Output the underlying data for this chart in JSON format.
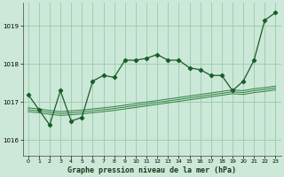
{
  "title": "Graphe pression niveau de la mer (hPa)",
  "bg_color": "#cce8d8",
  "grid_color": "#99ccaa",
  "line_color_main": "#1a5c2a",
  "line_color_thin": "#2e7d3e",
  "xlim": [
    -0.5,
    23.5
  ],
  "ylim": [
    1015.6,
    1019.6
  ],
  "yticks": [
    1016,
    1017,
    1018,
    1019
  ],
  "xticks": [
    0,
    1,
    2,
    3,
    4,
    5,
    6,
    7,
    8,
    9,
    10,
    11,
    12,
    13,
    14,
    15,
    16,
    17,
    18,
    19,
    20,
    21,
    22,
    23
  ],
  "thin1": [
    1016.75,
    1016.72,
    1016.68,
    1016.65,
    1016.67,
    1016.69,
    1016.72,
    1016.75,
    1016.78,
    1016.82,
    1016.86,
    1016.9,
    1016.94,
    1016.98,
    1017.02,
    1017.06,
    1017.1,
    1017.14,
    1017.18,
    1017.22,
    1017.2,
    1017.25,
    1017.28,
    1017.32
  ],
  "thin2": [
    1016.8,
    1016.77,
    1016.73,
    1016.7,
    1016.72,
    1016.74,
    1016.77,
    1016.8,
    1016.83,
    1016.87,
    1016.91,
    1016.95,
    1016.99,
    1017.03,
    1017.07,
    1017.11,
    1017.15,
    1017.19,
    1017.23,
    1017.27,
    1017.25,
    1017.3,
    1017.33,
    1017.37
  ],
  "thin3": [
    1016.85,
    1016.82,
    1016.78,
    1016.75,
    1016.77,
    1016.79,
    1016.82,
    1016.85,
    1016.88,
    1016.92,
    1016.96,
    1017.0,
    1017.04,
    1017.08,
    1017.12,
    1017.16,
    1017.2,
    1017.24,
    1017.28,
    1017.32,
    1017.3,
    1017.35,
    1017.38,
    1017.42
  ],
  "main_x": [
    0,
    1,
    2,
    3,
    4,
    5,
    6,
    7,
    8,
    9,
    10,
    11,
    12,
    13,
    14,
    15,
    16,
    17,
    18,
    19,
    20,
    21,
    22,
    23
  ],
  "main_y": [
    1017.2,
    1016.8,
    1016.4,
    1017.3,
    1016.5,
    1016.6,
    1017.55,
    1017.7,
    1017.65,
    1018.1,
    1018.1,
    1018.15,
    1018.25,
    1018.1,
    1018.1,
    1017.9,
    1017.85,
    1017.7,
    1017.7,
    1017.3,
    1017.55,
    1018.1,
    1019.15,
    1019.35
  ]
}
